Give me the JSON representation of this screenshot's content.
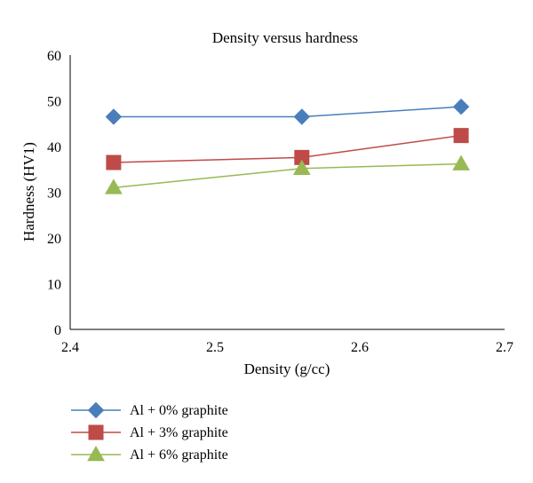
{
  "chart_data": {
    "type": "line",
    "title": "Density versus hardness",
    "xlabel": "Density (g/cc)",
    "ylabel": "Hardness (HV1)",
    "xlim": [
      2.4,
      2.7
    ],
    "ylim": [
      0,
      60
    ],
    "xticks": [
      "2.4",
      "2.5",
      "2.6",
      "2.7"
    ],
    "yticks": [
      "0",
      "10",
      "20",
      "30",
      "40",
      "50",
      "60"
    ],
    "grid": false,
    "legend_position": "bottom-left",
    "x": [
      2.43,
      2.56,
      2.67
    ],
    "series": [
      {
        "name": "Al + 0% graphite",
        "values": [
          46.5,
          46.5,
          48.7
        ],
        "color": "#4a7ebb",
        "marker": "diamond"
      },
      {
        "name": "Al + 3% graphite",
        "values": [
          36.5,
          37.6,
          42.4
        ],
        "color": "#be4b48",
        "marker": "square"
      },
      {
        "name": "Al + 6% graphite",
        "values": [
          31.0,
          35.2,
          36.2
        ],
        "color": "#98b954",
        "marker": "triangle"
      }
    ]
  }
}
